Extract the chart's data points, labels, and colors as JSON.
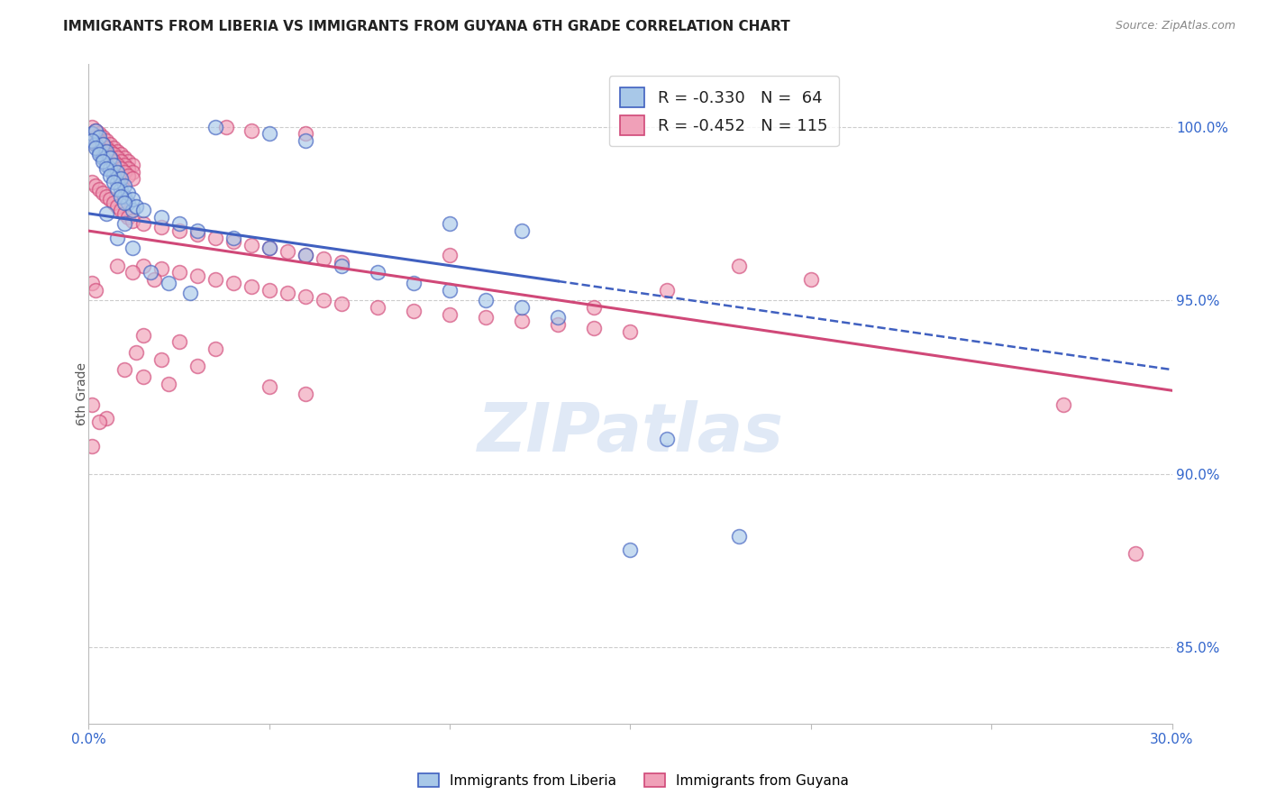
{
  "title": "IMMIGRANTS FROM LIBERIA VS IMMIGRANTS FROM GUYANA 6TH GRADE CORRELATION CHART",
  "source": "Source: ZipAtlas.com",
  "ylabel": "6th Grade",
  "ylabel_right_ticks": [
    "100.0%",
    "95.0%",
    "90.0%",
    "85.0%"
  ],
  "ylabel_right_vals": [
    1.0,
    0.95,
    0.9,
    0.85
  ],
  "xmin": 0.0,
  "xmax": 0.3,
  "ymin": 0.828,
  "ymax": 1.018,
  "legend_liberia": "Immigrants from Liberia",
  "legend_guyana": "Immigrants from Guyana",
  "R_liberia": -0.33,
  "N_liberia": 64,
  "R_guyana": -0.452,
  "N_guyana": 115,
  "color_liberia": "#a8c8e8",
  "color_guyana": "#f0a0b8",
  "color_liberia_line": "#4060c0",
  "color_guyana_line": "#d04878",
  "watermark": "ZIPatlas",
  "watermark_color": "#c8d8f0",
  "background_color": "#ffffff",
  "grid_color": "#cccccc",
  "trend_liberia_x0": 0.0,
  "trend_liberia_y0": 0.975,
  "trend_liberia_x1": 0.3,
  "trend_liberia_y1": 0.93,
  "trend_liberia_solid_end": 0.13,
  "trend_guyana_x0": 0.0,
  "trend_guyana_y0": 0.97,
  "trend_guyana_x1": 0.3,
  "trend_guyana_y1": 0.924,
  "scatter_liberia": [
    [
      0.001,
      0.998
    ],
    [
      0.002,
      0.995
    ],
    [
      0.003,
      0.993
    ],
    [
      0.004,
      0.991
    ],
    [
      0.005,
      0.989
    ],
    [
      0.006,
      0.988
    ],
    [
      0.007,
      0.986
    ],
    [
      0.008,
      0.984
    ],
    [
      0.009,
      0.982
    ],
    [
      0.01,
      0.98
    ],
    [
      0.011,
      0.978
    ],
    [
      0.012,
      0.976
    ],
    [
      0.002,
      0.999
    ],
    [
      0.003,
      0.997
    ],
    [
      0.004,
      0.995
    ],
    [
      0.005,
      0.993
    ],
    [
      0.006,
      0.991
    ],
    [
      0.007,
      0.989
    ],
    [
      0.008,
      0.987
    ],
    [
      0.009,
      0.985
    ],
    [
      0.01,
      0.983
    ],
    [
      0.011,
      0.981
    ],
    [
      0.012,
      0.979
    ],
    [
      0.013,
      0.977
    ],
    [
      0.001,
      0.996
    ],
    [
      0.002,
      0.994
    ],
    [
      0.003,
      0.992
    ],
    [
      0.004,
      0.99
    ],
    [
      0.005,
      0.988
    ],
    [
      0.006,
      0.986
    ],
    [
      0.007,
      0.984
    ],
    [
      0.008,
      0.982
    ],
    [
      0.009,
      0.98
    ],
    [
      0.01,
      0.978
    ],
    [
      0.015,
      0.976
    ],
    [
      0.02,
      0.974
    ],
    [
      0.025,
      0.972
    ],
    [
      0.03,
      0.97
    ],
    [
      0.04,
      0.968
    ],
    [
      0.05,
      0.965
    ],
    [
      0.06,
      0.963
    ],
    [
      0.07,
      0.96
    ],
    [
      0.08,
      0.958
    ],
    [
      0.09,
      0.955
    ],
    [
      0.1,
      0.953
    ],
    [
      0.11,
      0.95
    ],
    [
      0.12,
      0.948
    ],
    [
      0.13,
      0.945
    ],
    [
      0.035,
      1.0
    ],
    [
      0.05,
      0.998
    ],
    [
      0.06,
      0.996
    ],
    [
      0.1,
      0.972
    ],
    [
      0.12,
      0.97
    ],
    [
      0.017,
      0.958
    ],
    [
      0.022,
      0.955
    ],
    [
      0.028,
      0.952
    ],
    [
      0.008,
      0.968
    ],
    [
      0.012,
      0.965
    ],
    [
      0.15,
      0.878
    ],
    [
      0.18,
      0.882
    ],
    [
      0.16,
      0.91
    ],
    [
      0.005,
      0.975
    ],
    [
      0.01,
      0.972
    ]
  ],
  "scatter_guyana": [
    [
      0.001,
      1.0
    ],
    [
      0.002,
      0.999
    ],
    [
      0.003,
      0.998
    ],
    [
      0.004,
      0.997
    ],
    [
      0.005,
      0.996
    ],
    [
      0.006,
      0.995
    ],
    [
      0.007,
      0.994
    ],
    [
      0.008,
      0.993
    ],
    [
      0.009,
      0.992
    ],
    [
      0.01,
      0.991
    ],
    [
      0.011,
      0.99
    ],
    [
      0.012,
      0.989
    ],
    [
      0.001,
      0.998
    ],
    [
      0.002,
      0.997
    ],
    [
      0.003,
      0.996
    ],
    [
      0.004,
      0.995
    ],
    [
      0.005,
      0.994
    ],
    [
      0.006,
      0.993
    ],
    [
      0.007,
      0.992
    ],
    [
      0.008,
      0.991
    ],
    [
      0.009,
      0.99
    ],
    [
      0.01,
      0.989
    ],
    [
      0.011,
      0.988
    ],
    [
      0.012,
      0.987
    ],
    [
      0.001,
      0.996
    ],
    [
      0.002,
      0.995
    ],
    [
      0.003,
      0.994
    ],
    [
      0.004,
      0.993
    ],
    [
      0.005,
      0.992
    ],
    [
      0.006,
      0.991
    ],
    [
      0.007,
      0.99
    ],
    [
      0.008,
      0.989
    ],
    [
      0.009,
      0.988
    ],
    [
      0.01,
      0.987
    ],
    [
      0.011,
      0.986
    ],
    [
      0.012,
      0.985
    ],
    [
      0.001,
      0.984
    ],
    [
      0.002,
      0.983
    ],
    [
      0.003,
      0.982
    ],
    [
      0.004,
      0.981
    ],
    [
      0.005,
      0.98
    ],
    [
      0.006,
      0.979
    ],
    [
      0.007,
      0.978
    ],
    [
      0.008,
      0.977
    ],
    [
      0.009,
      0.976
    ],
    [
      0.01,
      0.975
    ],
    [
      0.011,
      0.974
    ],
    [
      0.012,
      0.973
    ],
    [
      0.015,
      0.972
    ],
    [
      0.02,
      0.971
    ],
    [
      0.025,
      0.97
    ],
    [
      0.03,
      0.969
    ],
    [
      0.035,
      0.968
    ],
    [
      0.04,
      0.967
    ],
    [
      0.045,
      0.966
    ],
    [
      0.05,
      0.965
    ],
    [
      0.055,
      0.964
    ],
    [
      0.06,
      0.963
    ],
    [
      0.065,
      0.962
    ],
    [
      0.07,
      0.961
    ],
    [
      0.015,
      0.96
    ],
    [
      0.02,
      0.959
    ],
    [
      0.025,
      0.958
    ],
    [
      0.03,
      0.957
    ],
    [
      0.035,
      0.956
    ],
    [
      0.04,
      0.955
    ],
    [
      0.045,
      0.954
    ],
    [
      0.05,
      0.953
    ],
    [
      0.055,
      0.952
    ],
    [
      0.06,
      0.951
    ],
    [
      0.065,
      0.95
    ],
    [
      0.07,
      0.949
    ],
    [
      0.08,
      0.948
    ],
    [
      0.09,
      0.947
    ],
    [
      0.1,
      0.946
    ],
    [
      0.11,
      0.945
    ],
    [
      0.12,
      0.944
    ],
    [
      0.13,
      0.943
    ],
    [
      0.14,
      0.942
    ],
    [
      0.15,
      0.941
    ],
    [
      0.038,
      1.0
    ],
    [
      0.045,
      0.999
    ],
    [
      0.06,
      0.998
    ],
    [
      0.015,
      0.94
    ],
    [
      0.025,
      0.938
    ],
    [
      0.035,
      0.936
    ],
    [
      0.013,
      0.935
    ],
    [
      0.02,
      0.933
    ],
    [
      0.03,
      0.931
    ],
    [
      0.01,
      0.93
    ],
    [
      0.015,
      0.928
    ],
    [
      0.022,
      0.926
    ],
    [
      0.008,
      0.96
    ],
    [
      0.012,
      0.958
    ],
    [
      0.018,
      0.956
    ],
    [
      0.2,
      0.956
    ],
    [
      0.18,
      0.96
    ],
    [
      0.16,
      0.953
    ],
    [
      0.14,
      0.948
    ],
    [
      0.001,
      0.92
    ],
    [
      0.005,
      0.916
    ],
    [
      0.1,
      0.963
    ],
    [
      0.29,
      0.877
    ],
    [
      0.27,
      0.92
    ],
    [
      0.001,
      0.908
    ],
    [
      0.003,
      0.915
    ],
    [
      0.001,
      0.955
    ],
    [
      0.002,
      0.953
    ],
    [
      0.05,
      0.925
    ],
    [
      0.06,
      0.923
    ]
  ]
}
